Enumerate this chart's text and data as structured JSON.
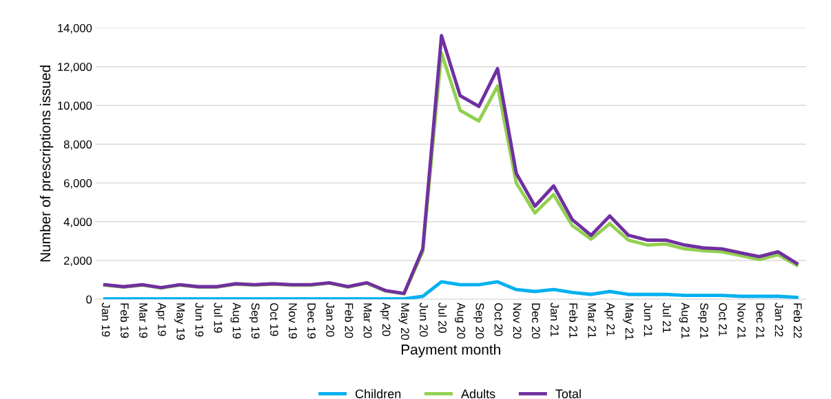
{
  "chart_data": {
    "type": "line",
    "xlabel": "Payment month",
    "ylabel": "Number of prescriptions issued",
    "categories": [
      "Jan 19",
      "Feb 19",
      "Mar 19",
      "Apr 19",
      "May 19",
      "Jun 19",
      "Jul 19",
      "Aug 19",
      "Sep 19",
      "Oct 19",
      "Nov 19",
      "Dec 19",
      "Jan 20",
      "Feb 20",
      "Mar 20",
      "Apr 20",
      "May 20",
      "Jun 20",
      "Jul 20",
      "Aug 20",
      "Sep 20",
      "Oct 20",
      "Nov 20",
      "Dec 20",
      "Jan 21",
      "Feb 21",
      "Mar 21",
      "Apr 21",
      "May 21",
      "Jun 21",
      "Jul 21",
      "Aug 21",
      "Sep 21",
      "Oct 21",
      "Nov 21",
      "Dec 21",
      "Jan 22",
      "Feb 22"
    ],
    "series": [
      {
        "name": "Children",
        "color": "#00b0f0",
        "values": [
          20,
          20,
          20,
          20,
          20,
          20,
          20,
          20,
          20,
          20,
          20,
          20,
          20,
          20,
          20,
          20,
          20,
          150,
          900,
          750,
          750,
          900,
          500,
          400,
          500,
          350,
          250,
          400,
          250,
          250,
          250,
          200,
          200,
          200,
          150,
          150,
          150,
          100
        ]
      },
      {
        "name": "Adults",
        "color": "#92d050",
        "values": [
          730,
          630,
          730,
          580,
          730,
          630,
          630,
          780,
          730,
          780,
          730,
          730,
          830,
          630,
          830,
          430,
          280,
          2450,
          12700,
          9750,
          9200,
          11000,
          6000,
          4450,
          5400,
          3800,
          3100,
          3900,
          3050,
          2800,
          2850,
          2600,
          2500,
          2450,
          2250,
          2050,
          2300,
          1750
        ]
      },
      {
        "name": "Total",
        "color": "#7030a0",
        "values": [
          750,
          650,
          750,
          600,
          750,
          650,
          650,
          800,
          750,
          800,
          750,
          750,
          850,
          650,
          850,
          450,
          300,
          2600,
          13600,
          10500,
          9950,
          11900,
          6500,
          4800,
          5850,
          4100,
          3300,
          4300,
          3300,
          3050,
          3050,
          2800,
          2650,
          2600,
          2400,
          2200,
          2450,
          1850
        ]
      }
    ],
    "ylim": [
      0,
      14000
    ],
    "yticks": [
      {
        "value": 0,
        "label": "0"
      },
      {
        "value": 2000,
        "label": "2,000"
      },
      {
        "value": 4000,
        "label": "4,000"
      },
      {
        "value": 6000,
        "label": "6,000"
      },
      {
        "value": 8000,
        "label": "8,000"
      },
      {
        "value": 10000,
        "label": "10,000"
      },
      {
        "value": 12000,
        "label": "12,000"
      },
      {
        "value": 14000,
        "label": "14,000"
      }
    ],
    "grid": "y",
    "legend": "bottom",
    "marker": "none",
    "line_style": "solid"
  }
}
